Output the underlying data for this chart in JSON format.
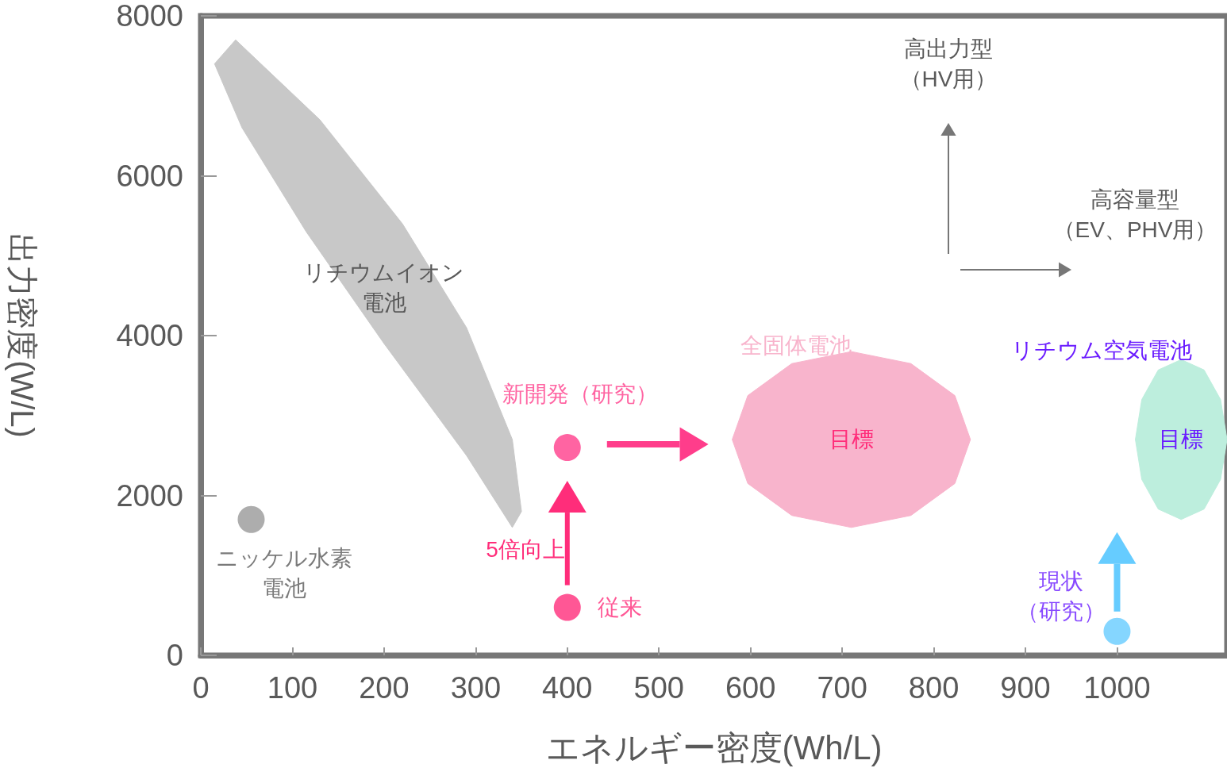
{
  "chart_data": {
    "type": "scatter",
    "xlabel": "エネルギー密度(Wh/L)",
    "ylabel": "出力密度(W/L)",
    "xlim": [
      0,
      1120
    ],
    "xticks": [
      0,
      100,
      200,
      300,
      400,
      500,
      600,
      700,
      800,
      900,
      1000
    ],
    "ylim": [
      0,
      8000
    ],
    "yticks": [
      0,
      2000,
      4000,
      6000,
      8000
    ],
    "grid": false,
    "marker": "circle",
    "series": [
      {
        "type": "area",
        "name": "リチウムイオン電池",
        "marker": "none",
        "color": "#c8c8c8",
        "x": [
          38,
          130,
          220,
          290,
          340,
          350,
          340,
          290,
          200,
          115,
          45,
          15
        ],
        "values": [
          7700,
          6700,
          5400,
          4100,
          2700,
          1800,
          1600,
          2500,
          3900,
          5300,
          6600,
          7400
        ]
      },
      {
        "type": "area",
        "name": "全固体電池",
        "marker": "none",
        "color": "#f8b4cc",
        "x": [
          840,
          823,
          775,
          710,
          645,
          597,
          580,
          597,
          645,
          710,
          775,
          823
        ],
        "values": [
          2700,
          3250,
          3650,
          3800,
          3650,
          3250,
          2700,
          2150,
          1750,
          1600,
          1750,
          2150
        ]
      },
      {
        "type": "area",
        "name": "リチウム空気電池",
        "marker": "none",
        "color": "#bdeedd",
        "x": [
          1120,
          1113,
          1095,
          1070,
          1045,
          1027,
          1020,
          1027,
          1045,
          1070,
          1095,
          1113
        ],
        "values": [
          2700,
          3200,
          3570,
          3700,
          3570,
          3200,
          2700,
          2200,
          1830,
          1700,
          1830,
          2200
        ]
      },
      {
        "name": "ニッケル水素電池",
        "color": "#999999",
        "x": [
          55
        ],
        "values": [
          1700
        ]
      },
      {
        "name": "新開発（研究）",
        "color": "#ff3d8b",
        "x": [
          400
        ],
        "values": [
          2600
        ]
      },
      {
        "name": "従来",
        "color": "#ff2d7a",
        "x": [
          400
        ],
        "values": [
          600
        ]
      },
      {
        "name": "現状（研究）",
        "color": "#66ccff",
        "x": [
          1000
        ],
        "values": [
          300
        ]
      }
    ],
    "annotations": [
      "目標",
      "目標",
      "5倍向上",
      "高出力型（HV用）",
      "高容量型（EV、PHV用）"
    ]
  }
}
